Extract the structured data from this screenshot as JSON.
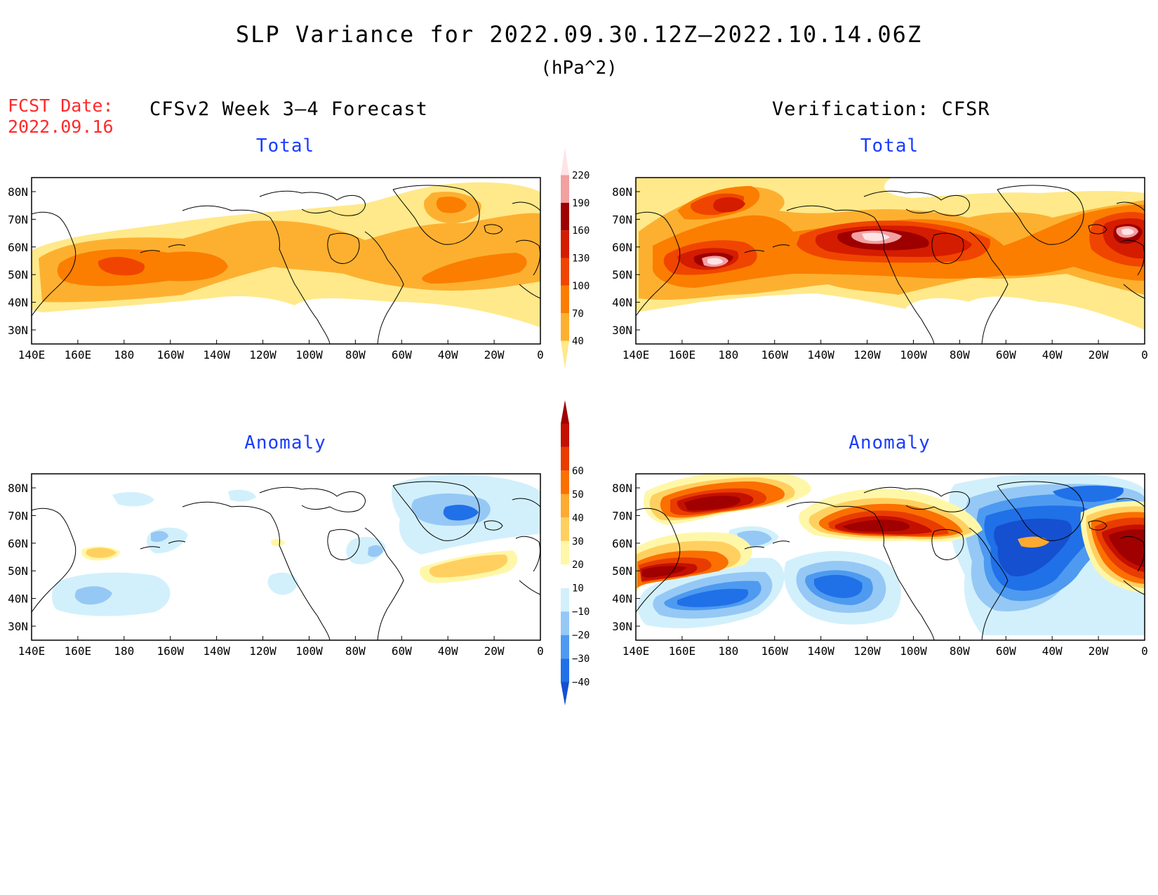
{
  "title": "SLP Variance for 2022.09.30.12Z–2022.10.14.06Z",
  "units": "(hPa^2)",
  "fcst_date_label": "FCST Date:",
  "fcst_date": "2022.09.16",
  "left_header": "CFSv2 Week 3–4 Forecast",
  "right_header": "Verification: CFSR",
  "panels": [
    {
      "title": "Total",
      "kind": "total",
      "source": "forecast"
    },
    {
      "title": "Total",
      "kind": "total",
      "source": "verification"
    },
    {
      "title": "Anomaly",
      "kind": "anomaly",
      "source": "forecast"
    },
    {
      "title": "Anomaly",
      "kind": "anomaly",
      "source": "verification"
    }
  ],
  "x_ticks": [
    "140E",
    "160E",
    "180",
    "160W",
    "140W",
    "120W",
    "100W",
    "80W",
    "60W",
    "40W",
    "20W",
    "0"
  ],
  "y_ticks": [
    "80N",
    "70N",
    "60N",
    "50N",
    "40N",
    "30N"
  ],
  "total_colorbar": {
    "levels": [
      "40",
      "70",
      "100",
      "130",
      "160",
      "190",
      "220"
    ],
    "colors": [
      "#ffe98a",
      "#fdb030",
      "#fb7e00",
      "#f04500",
      "#d41c00",
      "#9e0000",
      "#f2a0a0",
      "#ffe3e6"
    ]
  },
  "anomaly_colorbar": {
    "levels": [
      "−40",
      "−30",
      "−20",
      "−10",
      "10",
      "20",
      "30",
      "40",
      "50",
      "60"
    ],
    "colors": [
      "#1550d0",
      "#2070e8",
      "#4d9af0",
      "#96c8f5",
      "#d2f0fc",
      "#ffffff",
      "#fff7a8",
      "#ffd060",
      "#fdaa30",
      "#fb7000",
      "#e83c00",
      "#c41000",
      "#a00000"
    ]
  }
}
